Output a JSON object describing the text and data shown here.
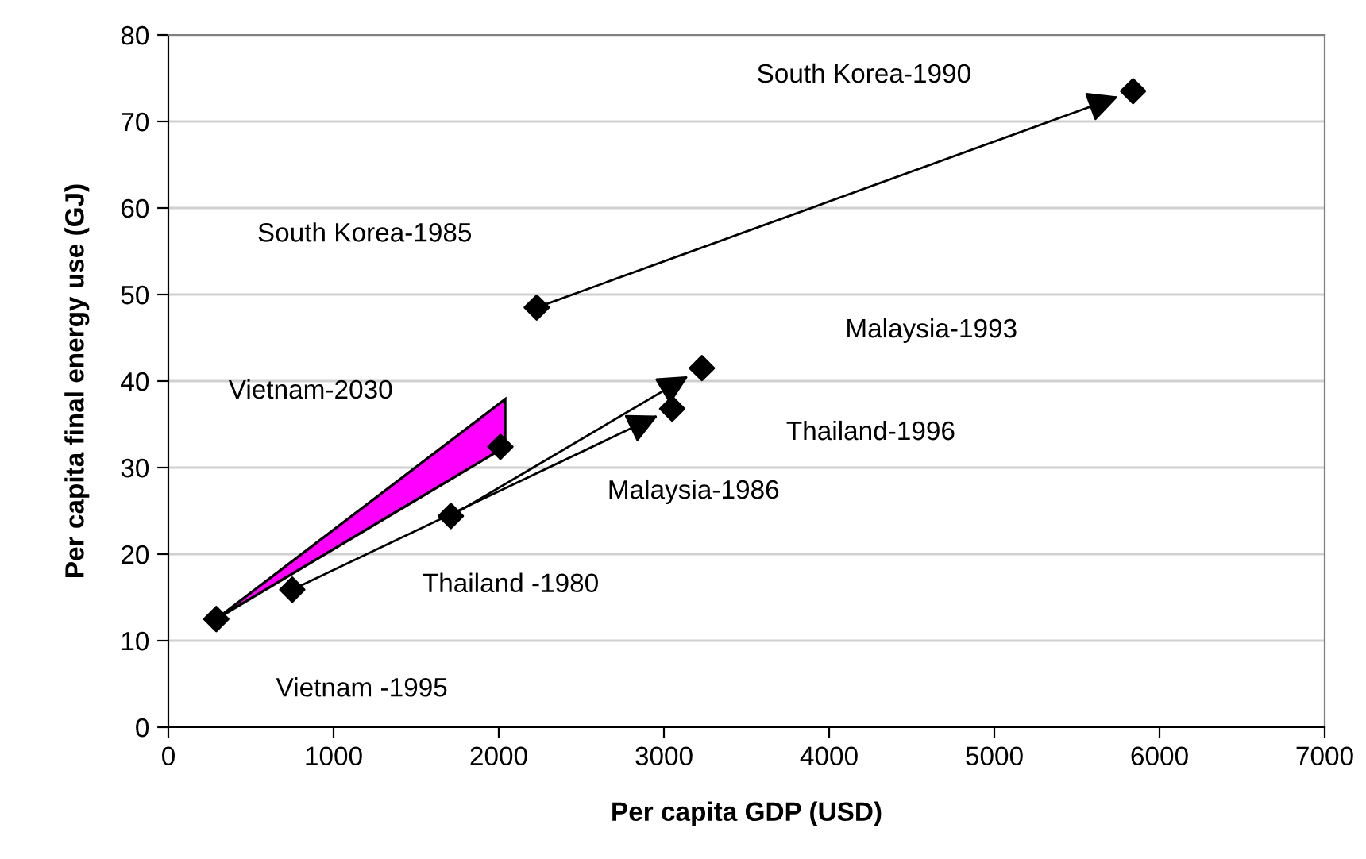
{
  "chart_data": {
    "type": "scatter",
    "xlabel": "Per capita GDP (USD)",
    "ylabel": "Per capita final energy use (GJ)",
    "xlim": [
      0,
      7000
    ],
    "xticks": [
      0,
      1000,
      2000,
      3000,
      4000,
      5000,
      6000,
      7000
    ],
    "ylim": [
      0,
      80
    ],
    "yticks": [
      0,
      10,
      20,
      30,
      40,
      50,
      60,
      70,
      80
    ],
    "grid": "y",
    "legend": false,
    "marker": "diamond",
    "series": [
      {
        "color": "#000000",
        "x": [
          290,
          750,
          1710,
          2010,
          3050,
          3230,
          2230,
          5840
        ],
        "values": [
          12.5,
          15.9,
          24.4,
          32.4,
          36.8,
          41.5,
          48.5,
          73.5
        ]
      }
    ],
    "annotations": [
      "Vietnam -1995",
      "Thailand -1980",
      "Malaysia-1986",
      "Vietnam-2030",
      "Thailand-1996",
      "Malaysia-1993",
      "South Korea-1985",
      "South Korea-1990"
    ]
  }
}
